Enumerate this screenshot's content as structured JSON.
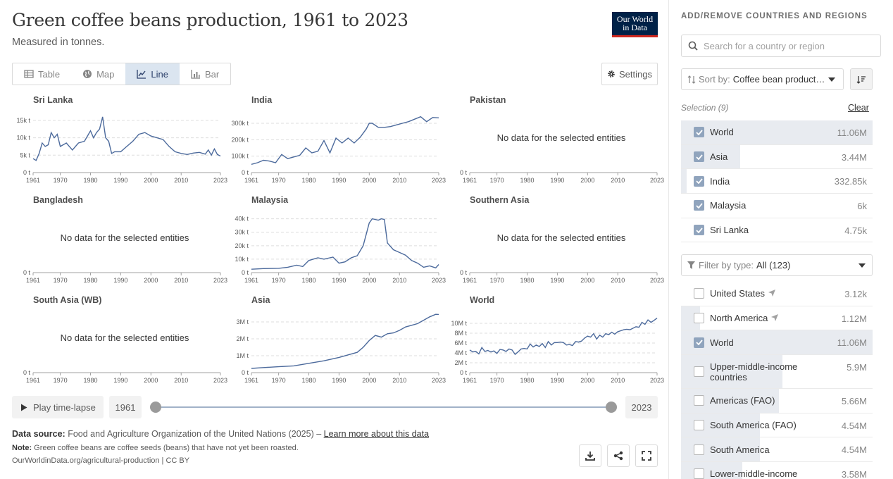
{
  "header": {
    "title": "Green coffee beans production, 1961 to 2023",
    "subtitle": "Measured in tonnes.",
    "logo_line1": "Our World",
    "logo_line2": "in Data"
  },
  "tabs": [
    {
      "label": "Table",
      "icon": "table-icon"
    },
    {
      "label": "Map",
      "icon": "globe-icon"
    },
    {
      "label": "Line",
      "icon": "line-chart-icon",
      "active": true
    },
    {
      "label": "Bar",
      "icon": "bar-chart-icon"
    }
  ],
  "settings_label": "Settings",
  "no_data_text": "No data for the selected entities",
  "chart_data": [
    {
      "type": "line",
      "title": "Sri Lanka",
      "x_ticks": [
        "1961",
        "1970",
        "1980",
        "1990",
        "2000",
        "2010",
        "2023"
      ],
      "y_ticks": [
        "0 t",
        "5k t",
        "10k t",
        "15k t"
      ],
      "ylim": [
        0,
        17000
      ],
      "x": [
        1961,
        1962,
        1963,
        1964,
        1965,
        1966,
        1967,
        1968,
        1969,
        1970,
        1972,
        1974,
        1976,
        1978,
        1980,
        1981,
        1982,
        1983,
        1984,
        1985,
        1986,
        1987,
        1988,
        1990,
        1992,
        1994,
        1996,
        1998,
        2000,
        2002,
        2004,
        2006,
        2008,
        2010,
        2012,
        2014,
        2016,
        2018,
        2019,
        2020,
        2021,
        2022,
        2023
      ],
      "y": [
        4000,
        3500,
        5500,
        8500,
        7500,
        8000,
        11500,
        10000,
        11000,
        7500,
        8500,
        6500,
        8500,
        9000,
        12000,
        10000,
        11500,
        12500,
        16000,
        10000,
        9000,
        5500,
        6000,
        6000,
        7500,
        9000,
        11000,
        11500,
        10500,
        10000,
        9500,
        7500,
        6000,
        5500,
        5200,
        5600,
        5800,
        5300,
        6500,
        5000,
        6800,
        5200,
        4750
      ]
    },
    {
      "type": "line",
      "title": "India",
      "x_ticks": [
        "1961",
        "1970",
        "1980",
        "1990",
        "2000",
        "2010",
        "2023"
      ],
      "y_ticks": [
        "0 t",
        "100k t",
        "200k t",
        "300k t"
      ],
      "ylim": [
        0,
        360000
      ],
      "x": [
        1961,
        1963,
        1965,
        1967,
        1969,
        1971,
        1973,
        1975,
        1977,
        1979,
        1981,
        1983,
        1985,
        1987,
        1989,
        1991,
        1993,
        1995,
        1997,
        1999,
        2000,
        2001,
        2003,
        2005,
        2007,
        2009,
        2011,
        2013,
        2015,
        2017,
        2019,
        2021,
        2023
      ],
      "y": [
        50000,
        60000,
        75000,
        70000,
        60000,
        110000,
        85000,
        95000,
        105000,
        150000,
        120000,
        130000,
        195000,
        120000,
        210000,
        180000,
        210000,
        180000,
        215000,
        265000,
        300000,
        300000,
        275000,
        275000,
        280000,
        290000,
        300000,
        310000,
        325000,
        340000,
        310000,
        335000,
        332850
      ]
    },
    {
      "type": "line",
      "title": "Pakistan",
      "x_ticks": [
        "1961",
        "1970",
        "1980",
        "1990",
        "2000",
        "2010",
        "2023"
      ],
      "y_ticks": [
        "0 t"
      ],
      "nodata": true
    },
    {
      "type": "line",
      "title": "Bangladesh",
      "x_ticks": [
        "1961",
        "1970",
        "1980",
        "1990",
        "2000",
        "2010",
        "2023"
      ],
      "y_ticks": [
        "0 t"
      ],
      "nodata": true
    },
    {
      "type": "line",
      "title": "Malaysia",
      "x_ticks": [
        "1961",
        "1970",
        "1980",
        "1990",
        "2000",
        "2010",
        "2023"
      ],
      "y_ticks": [
        "0 t",
        "10k t",
        "20k t",
        "30k t",
        "40k t"
      ],
      "ylim": [
        0,
        44000
      ],
      "x": [
        1961,
        1965,
        1970,
        1973,
        1976,
        1978,
        1980,
        1983,
        1985,
        1988,
        1990,
        1992,
        1994,
        1996,
        1998,
        2000,
        2001,
        2003,
        2004,
        2005,
        2006,
        2008,
        2010,
        2012,
        2014,
        2016,
        2018,
        2020,
        2022,
        2023
      ],
      "y": [
        2500,
        3000,
        3200,
        4000,
        5500,
        4500,
        9000,
        11000,
        10000,
        11500,
        7000,
        8000,
        11000,
        12500,
        20000,
        37000,
        40000,
        39000,
        40000,
        39500,
        22000,
        17000,
        15000,
        13000,
        9000,
        7000,
        4000,
        5000,
        3500,
        6000
      ]
    },
    {
      "type": "line",
      "title": "Southern Asia",
      "x_ticks": [
        "1961",
        "1970",
        "1980",
        "1990",
        "2000",
        "2010",
        "2023"
      ],
      "y_ticks": [
        "0 t"
      ],
      "nodata": true
    },
    {
      "type": "line",
      "title": "South Asia (WB)",
      "x_ticks": [
        "1961",
        "1970",
        "1980",
        "1990",
        "2000",
        "2010",
        "2023"
      ],
      "y_ticks": [
        "0 t"
      ],
      "nodata": true
    },
    {
      "type": "line",
      "title": "Asia",
      "x_ticks": [
        "1961",
        "1970",
        "1980",
        "1990",
        "2000",
        "2010",
        "2023"
      ],
      "y_ticks": [
        "0 t",
        "1M t",
        "2M t",
        "3M t"
      ],
      "ylim": [
        0,
        3500000
      ],
      "x": [
        1961,
        1965,
        1970,
        1975,
        1980,
        1985,
        1990,
        1993,
        1996,
        1998,
        2000,
        2002,
        2004,
        2006,
        2008,
        2010,
        2012,
        2014,
        2016,
        2018,
        2020,
        2022,
        2023
      ],
      "y": [
        250000,
        300000,
        350000,
        400000,
        550000,
        700000,
        900000,
        1050000,
        1200000,
        1500000,
        1900000,
        2200000,
        2100000,
        2300000,
        2350000,
        2500000,
        2700000,
        2800000,
        2900000,
        3100000,
        3300000,
        3450000,
        3440000
      ]
    },
    {
      "type": "line",
      "title": "World",
      "x_ticks": [
        "1961",
        "1970",
        "1980",
        "1990",
        "2000",
        "2010",
        "2023"
      ],
      "y_ticks": [
        "0 t",
        "2M t",
        "4M t",
        "6M t",
        "8M t",
        "10M t"
      ],
      "ylim": [
        0,
        12000000
      ],
      "x": [
        1961,
        1962,
        1963,
        1964,
        1965,
        1966,
        1967,
        1968,
        1969,
        1970,
        1971,
        1972,
        1973,
        1974,
        1975,
        1976,
        1977,
        1978,
        1979,
        1980,
        1981,
        1982,
        1983,
        1984,
        1985,
        1986,
        1987,
        1988,
        1989,
        1990,
        1991,
        1992,
        1993,
        1994,
        1995,
        1996,
        1997,
        1998,
        1999,
        2000,
        2001,
        2002,
        2003,
        2004,
        2005,
        2006,
        2007,
        2008,
        2009,
        2010,
        2011,
        2012,
        2013,
        2014,
        2015,
        2016,
        2017,
        2018,
        2019,
        2020,
        2021,
        2022,
        2023
      ],
      "y": [
        4600000,
        4200000,
        4300000,
        3800000,
        5100000,
        4300000,
        4500000,
        4200000,
        4400000,
        3900000,
        4700000,
        4600000,
        4300000,
        4800000,
        4600000,
        3700000,
        4200000,
        4800000,
        4900000,
        4800000,
        5800000,
        5200000,
        5600000,
        5300000,
        5900000,
        5100000,
        6300000,
        5600000,
        6100000,
        6100000,
        6200000,
        6100000,
        5600000,
        5700000,
        5500000,
        6300000,
        6200000,
        6400000,
        7000000,
        7400000,
        7200000,
        7900000,
        6800000,
        7600000,
        7200000,
        7900000,
        7700000,
        8200000,
        7800000,
        8300000,
        8500000,
        8700000,
        8800000,
        8700000,
        9000000,
        9300000,
        9200000,
        10200000,
        9800000,
        10700000,
        10200000,
        10600000,
        11060000
      ]
    }
  ],
  "timeline": {
    "play_label": "Play time-lapse",
    "start_year": "1961",
    "end_year": "2023"
  },
  "footer": {
    "source_label": "Data source:",
    "source_text": "Food and Agriculture Organization of the United Nations (2025) – ",
    "learn_more": "Learn more about this data",
    "note_label": "Note:",
    "note_text": "Green coffee beans are coffee seeds (beans) that have not yet been roasted.",
    "url": "OurWorldinData.org/agricultural-production | CC BY"
  },
  "sidebar": {
    "heading": "ADD/REMOVE COUNTRIES AND REGIONS",
    "search_placeholder": "Search for a country or region",
    "sort_label": "Sort by:",
    "sort_value": "Coffee bean production",
    "selection_label": "Selection (9)",
    "clear_label": "Clear",
    "selected": [
      {
        "name": "World",
        "value": "11.06M",
        "share": 1.0
      },
      {
        "name": "Asia",
        "value": "3.44M",
        "share": 0.31
      },
      {
        "name": "India",
        "value": "332.85k",
        "share": 0.03
      },
      {
        "name": "Malaysia",
        "value": "6k",
        "share": 0.0
      },
      {
        "name": "Sri Lanka",
        "value": "4.75k",
        "share": 0.0
      }
    ],
    "filter_label": "Filter by type:",
    "filter_value": "All (123)",
    "all": [
      {
        "name": "United States",
        "value": "3.12k",
        "checked": false,
        "share": 0.0,
        "icon": "location-arrow-icon"
      },
      {
        "name": "North America",
        "value": "1.12M",
        "checked": false,
        "share": 0.1,
        "icon": "location-arrow-icon"
      },
      {
        "name": "World",
        "value": "11.06M",
        "checked": true,
        "share": 1.0
      },
      {
        "name": "Upper-middle-income countries",
        "value": "5.9M",
        "checked": false,
        "share": 0.53
      },
      {
        "name": "Americas (FAO)",
        "value": "5.66M",
        "checked": false,
        "share": 0.51
      },
      {
        "name": "South America (FAO)",
        "value": "4.54M",
        "checked": false,
        "share": 0.41
      },
      {
        "name": "South America",
        "value": "4.54M",
        "checked": false,
        "share": 0.41
      },
      {
        "name": "Lower-middle-income",
        "value": "3.58M",
        "checked": false,
        "share": 0.32
      }
    ]
  }
}
